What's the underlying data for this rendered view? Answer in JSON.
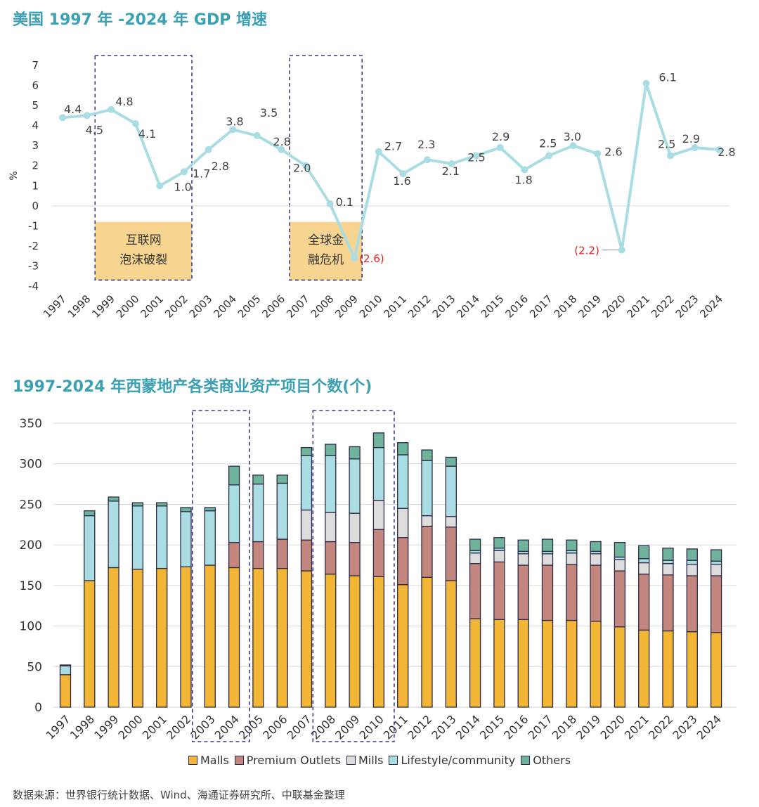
{
  "colors": {
    "title": "#3aa0b2",
    "gdp_line": "#a9dde3",
    "negative_label": "#e02020",
    "highlight_fill": "#f7d48f",
    "dash_box": "#3a3a8c",
    "grid": "#d9d9d9",
    "malls": "#f2b535",
    "premium_outlets": "#c48780",
    "mills": "#dcdcdc",
    "lifestyle": "#a9dde3",
    "others": "#6fb39d",
    "bar_border": "#2b2a45"
  },
  "chart_data": [
    {
      "type": "line",
      "title": "美国 1997 年 -2024 年 GDP 增速",
      "ylabel": "%",
      "xlabel": "",
      "ylim": [
        -4,
        7
      ],
      "yticks": [
        "7",
        "6",
        "5",
        "4",
        "3",
        "2",
        "1",
        "0",
        "-1",
        "-2",
        "-3",
        "-4"
      ],
      "categories": [
        "1997",
        "1998",
        "1999",
        "2000",
        "2001",
        "2002",
        "2003",
        "2004",
        "2005",
        "2006",
        "2007",
        "2008",
        "2009",
        "2010",
        "2011",
        "2012",
        "2013",
        "2014",
        "2015",
        "2016",
        "2017",
        "2018",
        "2019",
        "2020",
        "2021",
        "2022",
        "2023",
        "2024"
      ],
      "values": [
        4.4,
        4.5,
        4.8,
        4.1,
        1.0,
        1.7,
        2.8,
        3.8,
        3.5,
        2.8,
        2.0,
        0.1,
        -2.6,
        2.7,
        1.6,
        2.3,
        2.1,
        2.5,
        2.9,
        1.8,
        2.5,
        3.0,
        2.6,
        -2.2,
        6.1,
        2.5,
        2.9,
        2.8
      ],
      "data_labels": [
        "4.4",
        "4.5",
        "4.8",
        "4.1",
        "1.0",
        "1.7",
        "2.8",
        "3.8",
        "3.5",
        "2.8",
        "2.0",
        "0.1",
        "(2.6)",
        "2.7",
        "1.6",
        "2.3",
        "2.1",
        "2.5",
        "2.9",
        "1.8",
        "2.5",
        "3.0",
        "2.6",
        "(2.2)",
        "6.1",
        "2.5",
        "2.9",
        "2.8"
      ],
      "annotations": [
        {
          "text_line1": "互联网",
          "text_line2": "泡沫破裂",
          "from": "1999",
          "to": "2002"
        },
        {
          "text_line1": "全球金",
          "text_line2": "融危机",
          "from": "2007",
          "to": "2009"
        }
      ],
      "grid": false
    },
    {
      "type": "bar",
      "stacked": true,
      "title": "1997-2024 年西蒙地产各类商业资产项目个数(个)",
      "xlabel": "",
      "ylabel": "",
      "ylim": [
        0,
        350
      ],
      "yticks": [
        "350",
        "300",
        "250",
        "200",
        "150",
        "100",
        "50",
        "0"
      ],
      "categories": [
        "1997",
        "1998",
        "1999",
        "2000",
        "2001",
        "2002",
        "2003",
        "2004",
        "2005",
        "2006",
        "2007",
        "2008",
        "2009",
        "2010",
        "2011",
        "2012",
        "2013",
        "2014",
        "2015",
        "2016",
        "2017",
        "2018",
        "2019",
        "2020",
        "2021",
        "2022",
        "2023",
        "2024"
      ],
      "series": [
        {
          "name": "Malls",
          "values": [
            40,
            156,
            172,
            170,
            171,
            173,
            175,
            172,
            171,
            171,
            168,
            164,
            162,
            161,
            151,
            160,
            156,
            109,
            108,
            108,
            107,
            107,
            106,
            99,
            95,
            94,
            93,
            92
          ]
        },
        {
          "name": "Premium Outlets",
          "values": [
            0,
            0,
            0,
            0,
            0,
            0,
            0,
            31,
            33,
            36,
            38,
            40,
            41,
            58,
            58,
            63,
            66,
            68,
            71,
            67,
            68,
            69,
            69,
            69,
            69,
            69,
            69,
            70
          ]
        },
        {
          "name": "Mills",
          "values": [
            0,
            0,
            0,
            0,
            0,
            0,
            0,
            0,
            0,
            0,
            37,
            36,
            36,
            36,
            36,
            13,
            13,
            13,
            14,
            14,
            14,
            14,
            14,
            14,
            14,
            14,
            14,
            14
          ]
        },
        {
          "name": "Lifestyle/community",
          "values": [
            11,
            80,
            82,
            78,
            77,
            68,
            67,
            71,
            71,
            69,
            67,
            70,
            67,
            65,
            66,
            68,
            62,
            3,
            3,
            3,
            3,
            3,
            3,
            3,
            5,
            4,
            5,
            4
          ]
        },
        {
          "name": "Others",
          "values": [
            1,
            6,
            5,
            4,
            4,
            5,
            4,
            23,
            11,
            10,
            10,
            14,
            15,
            18,
            15,
            13,
            11,
            14,
            13,
            14,
            15,
            13,
            12,
            18,
            16,
            15,
            14,
            14
          ]
        }
      ],
      "highlight_ranges": [
        [
          "2003",
          "2004"
        ],
        [
          "2008",
          "2010"
        ]
      ],
      "legend_position": "bottom",
      "grid": true
    }
  ],
  "source_text": "数据来源：世界银行统计数据、Wind、海通证券研究所、中联基金整理"
}
